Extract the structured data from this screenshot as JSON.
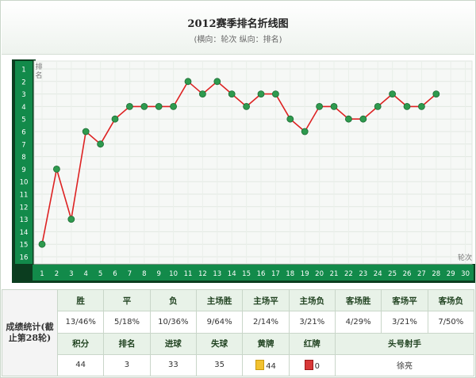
{
  "header": {
    "title": "2012赛季排名折线图",
    "subtitle": "(横向：轮次 纵向：排名)"
  },
  "chart_data": {
    "type": "line",
    "title": "2012赛季排名折线图",
    "subtitle": "(横向：轮次 纵向：排名)",
    "xlabel": "轮次",
    "ylabel": "排名",
    "x": [
      1,
      2,
      3,
      4,
      5,
      6,
      7,
      8,
      9,
      10,
      11,
      12,
      13,
      14,
      15,
      16,
      17,
      18,
      19,
      20,
      21,
      22,
      23,
      24,
      25,
      26,
      27,
      28
    ],
    "x_ticks": [
      1,
      2,
      3,
      4,
      5,
      6,
      7,
      8,
      9,
      10,
      11,
      12,
      13,
      14,
      15,
      16,
      17,
      18,
      19,
      20,
      21,
      22,
      23,
      24,
      25,
      26,
      27,
      28,
      29,
      30
    ],
    "y_ticks": [
      1,
      2,
      3,
      4,
      5,
      6,
      7,
      8,
      9,
      10,
      11,
      12,
      13,
      14,
      15,
      16
    ],
    "y_inverted": true,
    "xlim": [
      1,
      30
    ],
    "ylim": [
      1,
      16
    ],
    "series": [
      {
        "values": [
          15,
          9,
          13,
          6,
          7,
          5,
          4,
          4,
          4,
          4,
          2,
          3,
          2,
          3,
          4,
          3,
          3,
          5,
          6,
          4,
          4,
          5,
          5,
          4,
          3,
          4,
          4,
          3
        ],
        "color": "#dd2222"
      }
    ],
    "grid": true,
    "legend": "none",
    "colors": {
      "line": "#dd2222",
      "marker": "#2e9a4e",
      "axis_bar": "#128a4a",
      "axis_dark": "#0b3d1f"
    }
  },
  "stats": {
    "label": "成绩统计(截止第28轮)",
    "row1_headers": [
      "胜",
      "平",
      "负",
      "主场胜",
      "主场平",
      "主场负",
      "客场胜",
      "客场平",
      "客场负"
    ],
    "row1_values": [
      "13/46%",
      "5/18%",
      "10/36%",
      "9/64%",
      "2/14%",
      "3/21%",
      "4/29%",
      "3/21%",
      "7/50%"
    ],
    "row2_headers": [
      "积分",
      "排名",
      "进球",
      "失球",
      "黄牌",
      "红牌",
      "头号射手"
    ],
    "row2_values": [
      "44",
      "3",
      "33",
      "35",
      "44",
      "0",
      "徐亮"
    ]
  }
}
